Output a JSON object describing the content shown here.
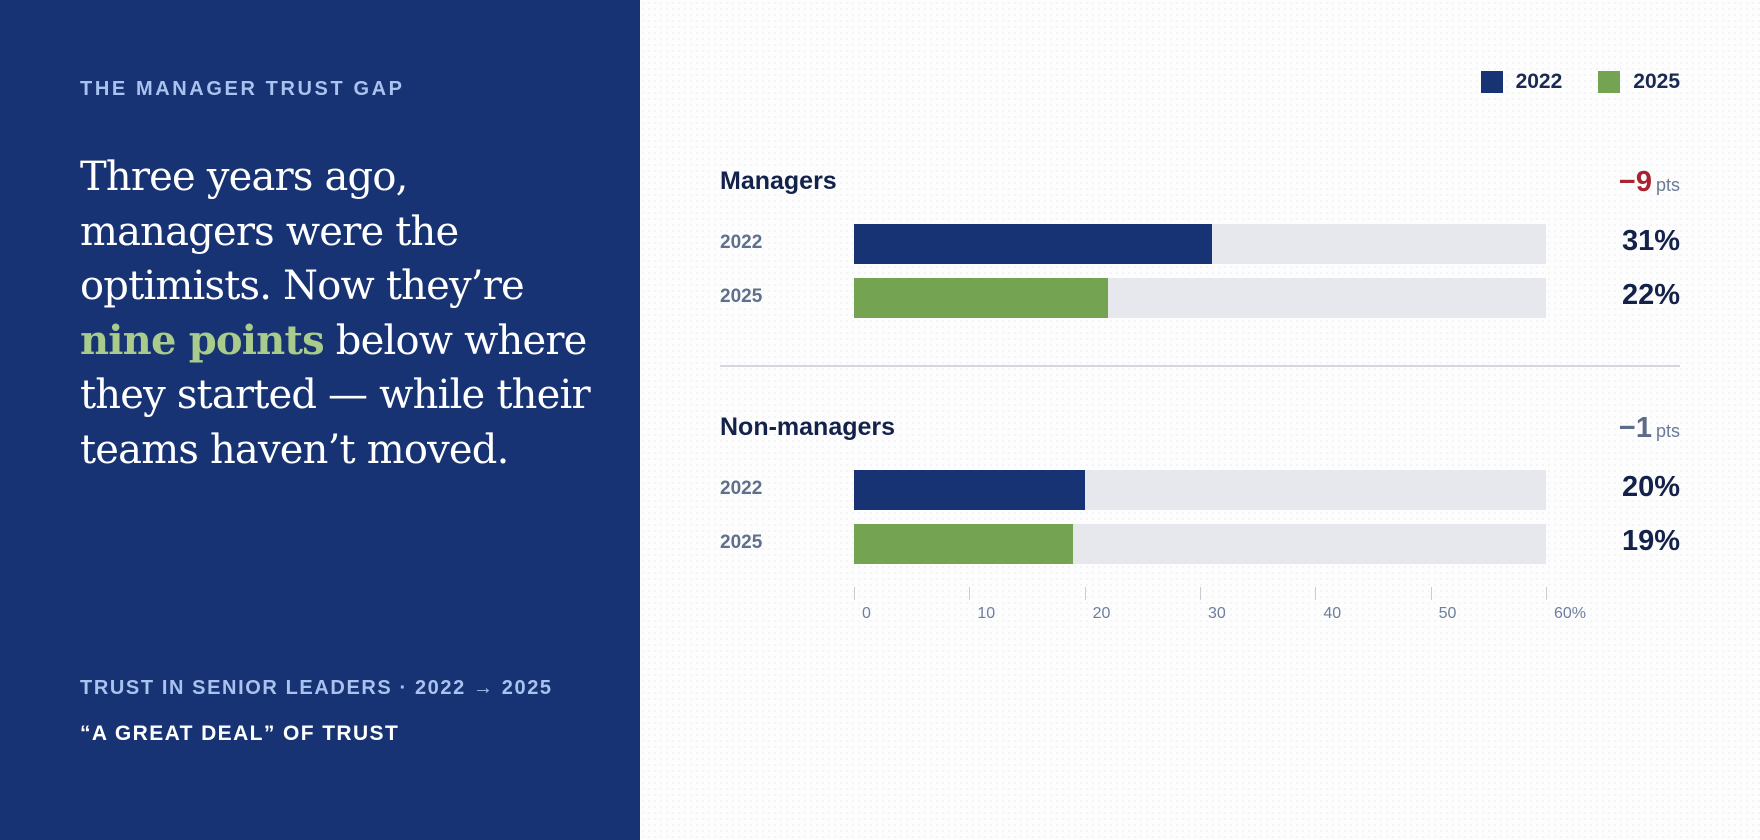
{
  "left": {
    "eyebrow": "THE MANAGER TRUST GAP",
    "headline_before": "Three years ago, managers were the optimists. Now they’re ",
    "headline_highlight": "nine points",
    "headline_after": " below where they started — while their teams haven’t moved.",
    "footer_line1": "TRUST IN SENIOR LEADERS · 2022 → 2025",
    "footer_line2": "“A GREAT DEAL” OF TRUST"
  },
  "colors": {
    "left_bg": "#173373",
    "series_2022": "#173373",
    "series_2025": "#74a352",
    "delta_negative_large": "#a8232f",
    "delta_negative_small": "#5b6b88",
    "track": "#e7e8ee"
  },
  "chart_data": {
    "type": "bar",
    "orientation": "horizontal",
    "legend": {
      "position": "top-right",
      "items": [
        "2022",
        "2025"
      ]
    },
    "groups": [
      {
        "name": "Managers",
        "delta": "−9",
        "delta_unit": "pts",
        "rows": [
          {
            "year": "2022",
            "value": 31,
            "label": "31%"
          },
          {
            "year": "2025",
            "value": 22,
            "label": "22%"
          }
        ]
      },
      {
        "name": "Non-managers",
        "delta": "−1",
        "delta_unit": "pts",
        "rows": [
          {
            "year": "2022",
            "value": 20,
            "label": "20%"
          },
          {
            "year": "2025",
            "value": 19,
            "label": "19%"
          }
        ]
      }
    ],
    "xlim": [
      0,
      60
    ],
    "x_ticks": [
      0,
      10,
      20,
      30,
      40,
      50,
      60
    ],
    "x_tick_labels": [
      "0",
      "10",
      "20",
      "30",
      "40",
      "50",
      "60%"
    ],
    "grid": false
  }
}
